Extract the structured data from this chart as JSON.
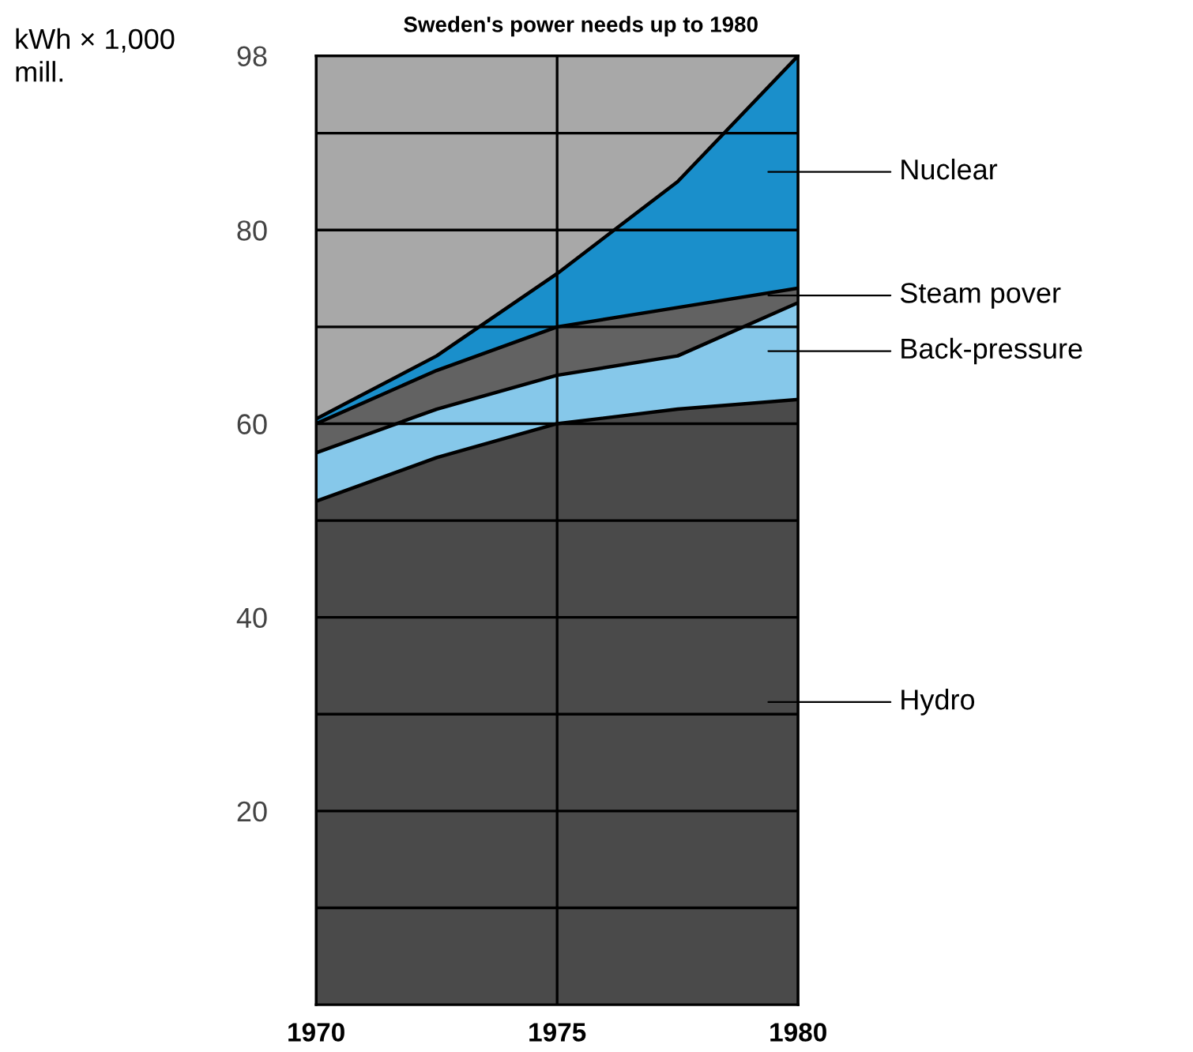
{
  "chart_data": {
    "type": "area",
    "stacked": true,
    "title": "Sweden's power needs up to 1980",
    "ylabel": "kWh × 1,000\nmill.",
    "x": [
      1970,
      1972.5,
      1975,
      1977.5,
      1980
    ],
    "series": [
      {
        "name": "Hydro",
        "color": "#4a4a4a",
        "values": [
          52,
          56.5,
          60,
          61.5,
          62.5
        ]
      },
      {
        "name": "Back-pressure",
        "color": "#86c8ea",
        "values": [
          5,
          5,
          5,
          5.5,
          10
        ]
      },
      {
        "name": "Steam pover",
        "color": "#626262",
        "values": [
          3,
          4,
          5,
          5,
          1.5
        ]
      },
      {
        "name": "Nuclear",
        "color": "#1a8fcb",
        "values": [
          0.5,
          1.5,
          5.5,
          13,
          24
        ]
      }
    ],
    "xlim": [
      1970,
      1980
    ],
    "xticks": [
      1970,
      1975,
      1980
    ],
    "ylim": [
      0,
      98
    ],
    "yticks": [
      {
        "value": 10,
        "label": null
      },
      20,
      {
        "value": 30,
        "label": null
      },
      40,
      {
        "value": 50,
        "label": null
      },
      60,
      {
        "value": 70,
        "label": null
      },
      80,
      {
        "value": 90,
        "label": null
      },
      98
    ],
    "grid": true,
    "legend": "right"
  }
}
